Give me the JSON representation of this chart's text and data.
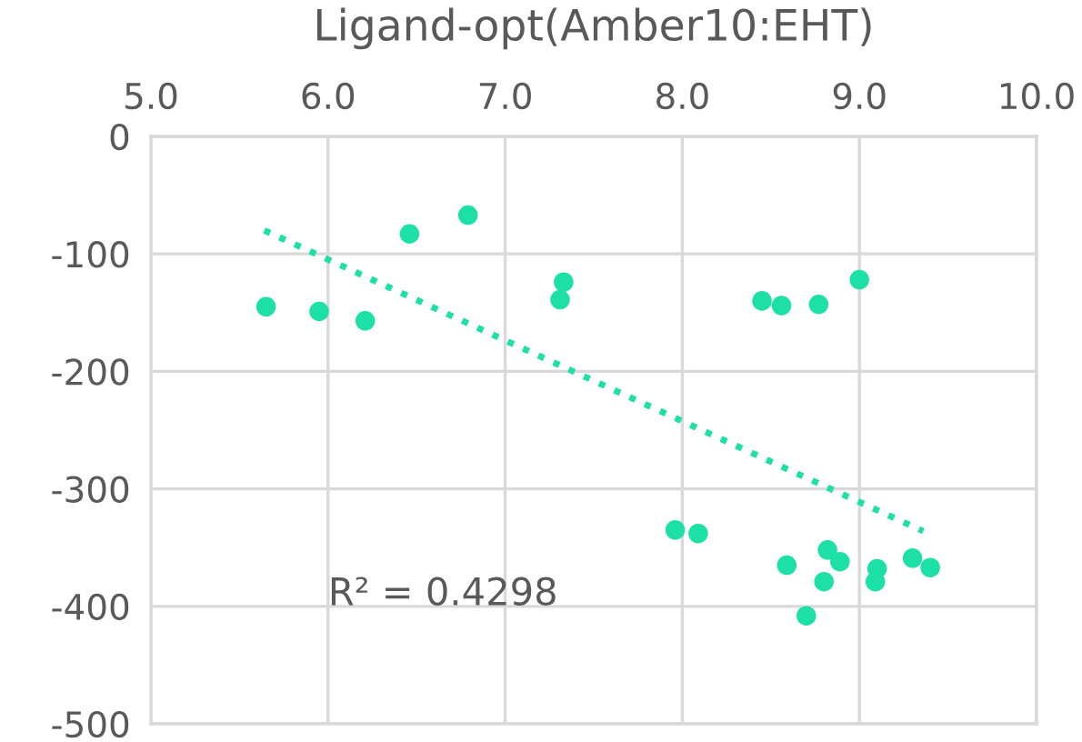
{
  "chart_data": {
    "type": "scatter",
    "title": "Ligand-opt(Amber10:EHT)",
    "xlim": [
      5.0,
      10.0
    ],
    "xticks": [
      {
        "value": 5,
        "label": "5.0"
      },
      {
        "value": 6,
        "label": "6.0"
      },
      {
        "value": 7,
        "label": "7.0"
      },
      {
        "value": 8,
        "label": "8.0"
      },
      {
        "value": 9,
        "label": "9.0"
      },
      {
        "value": 10,
        "label": "10.0"
      }
    ],
    "ylim": [
      -500,
      0
    ],
    "yticks": [
      -500,
      -400,
      -300,
      -200,
      -100,
      0
    ],
    "grid": true,
    "marker": "circle",
    "annotations": [
      "R² = 0.4298"
    ],
    "series": [
      {
        "color": "#1de0a6",
        "x": [
          5.65,
          5.95,
          6.21,
          6.46,
          6.79,
          7.33,
          7.31,
          8.45,
          8.56,
          8.77,
          9.0,
          7.96,
          8.09,
          8.59,
          8.82,
          8.89,
          8.8,
          8.7,
          9.1,
          9.09,
          9.3,
          9.4
        ],
        "values": [
          -145,
          -149,
          -157,
          -83,
          -67,
          -124,
          -139,
          -140,
          -144,
          -143,
          -122,
          -335,
          -338,
          -365,
          -352,
          -362,
          -379,
          -408,
          -368,
          -379,
          -359,
          -367
        ]
      },
      {
        "type": "line",
        "color": "#1de0a6",
        "line_style": "dotted",
        "marker": "none",
        "x": [
          5.64,
          9.36
        ],
        "values": [
          -80,
          -336
        ]
      }
    ]
  }
}
